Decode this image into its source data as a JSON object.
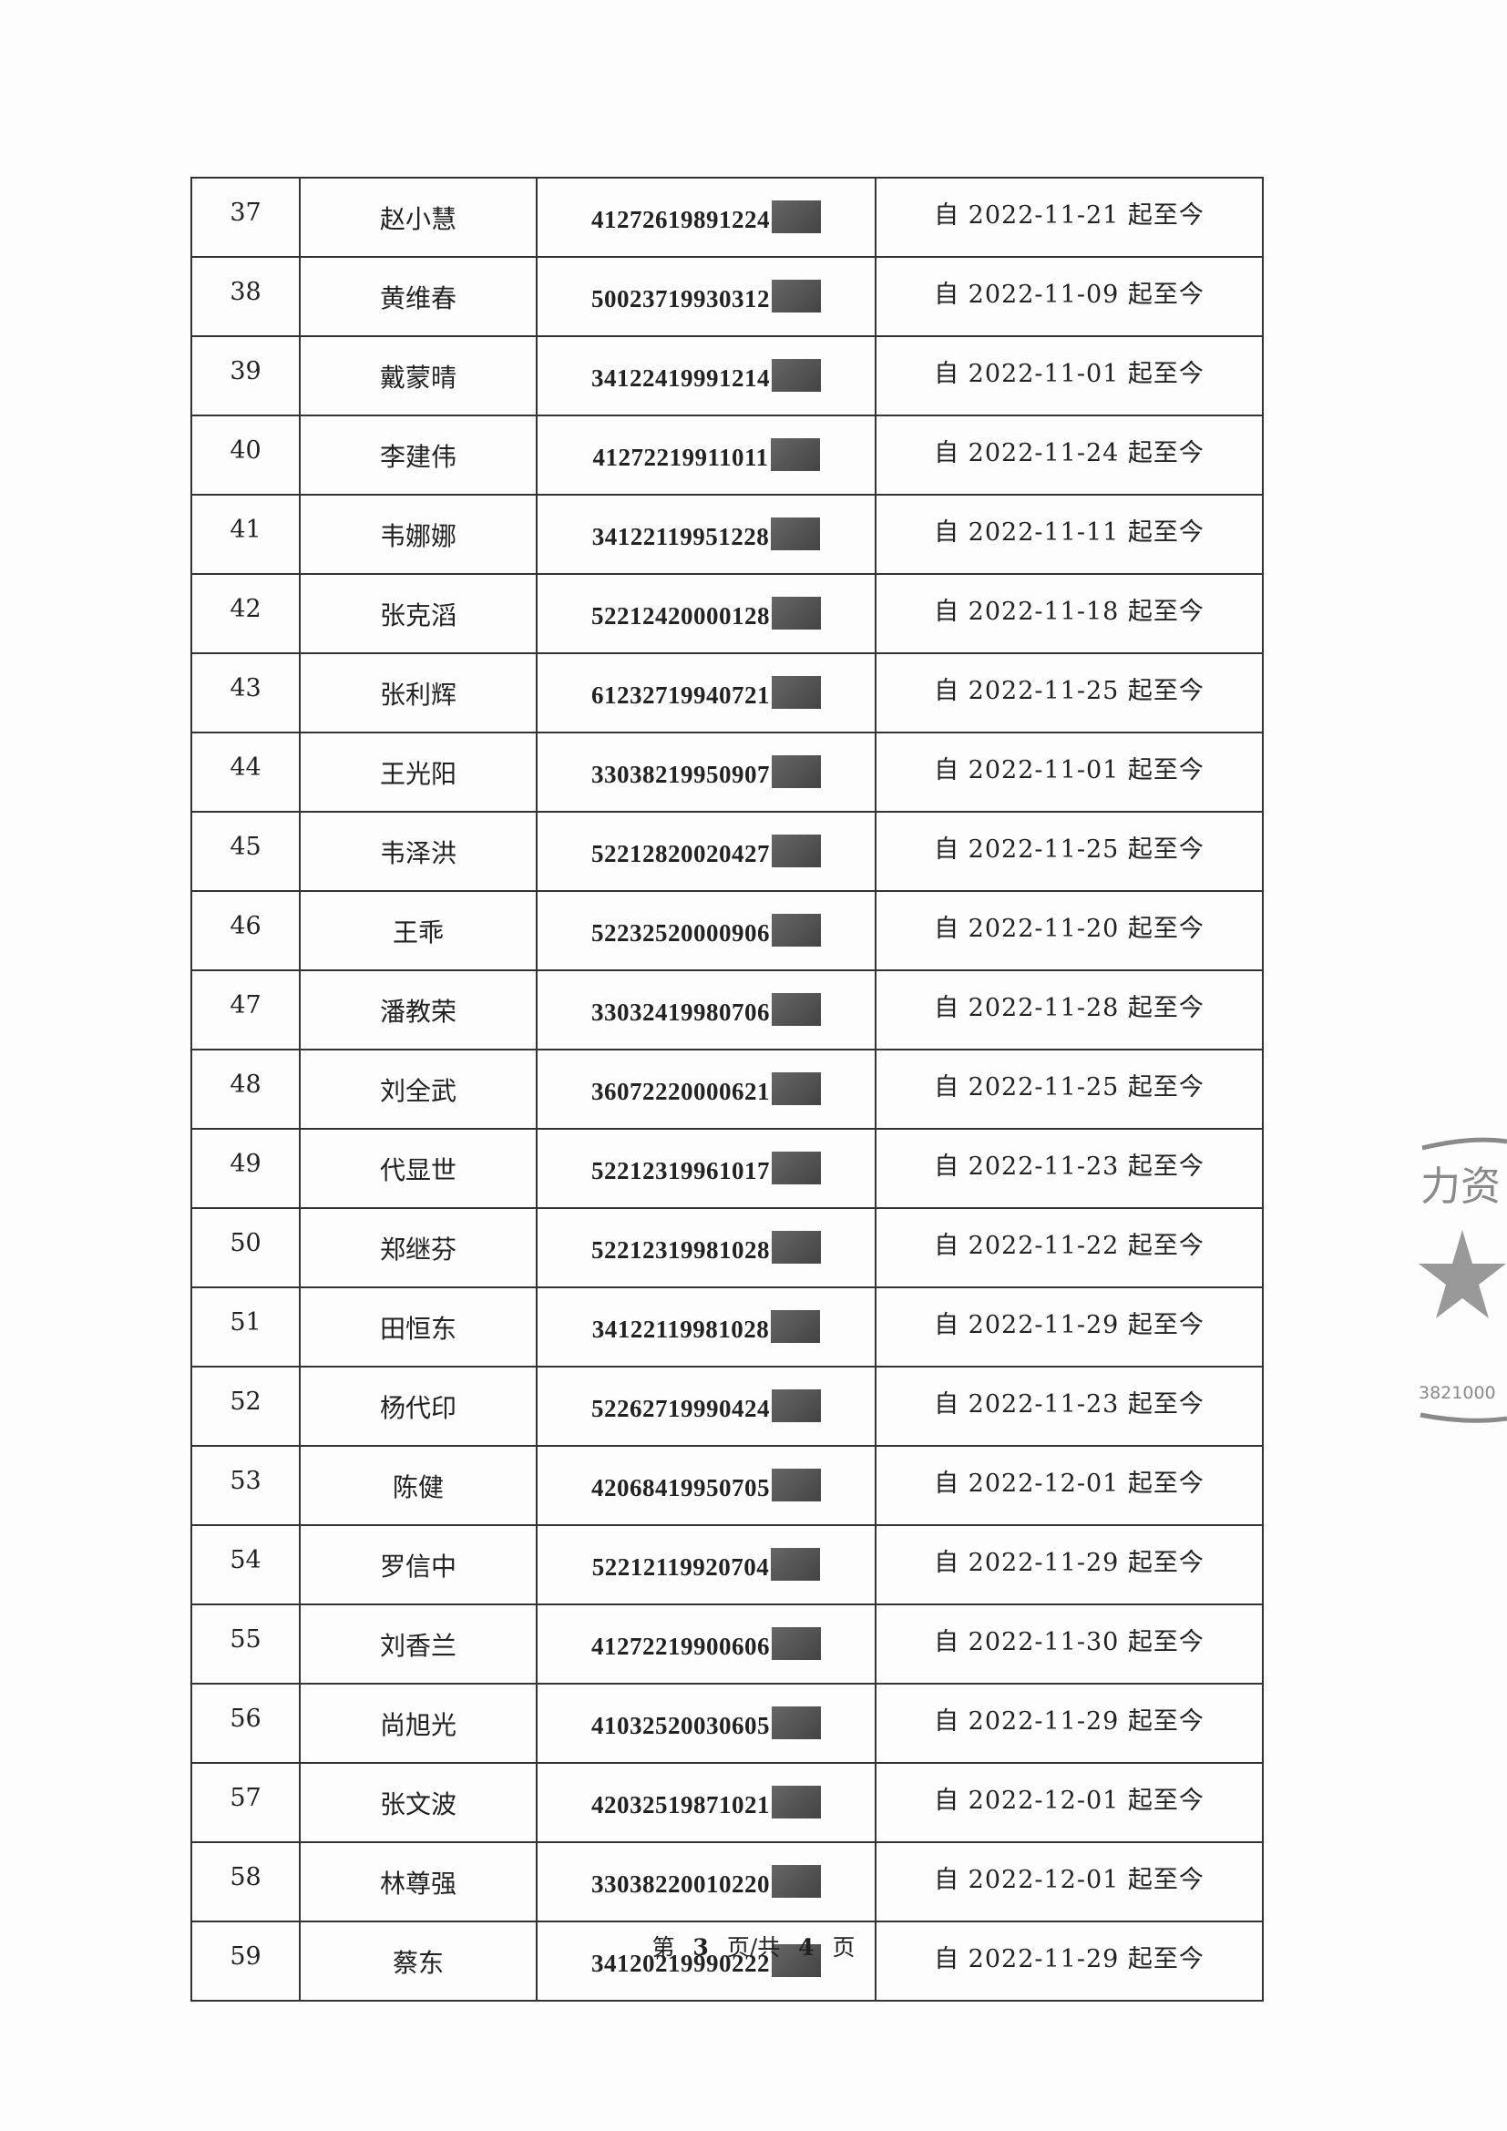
{
  "rows": [
    {
      "no": "37",
      "name": "赵小慧",
      "id": "41272619891224",
      "date": "自 2022-11-21 起至今"
    },
    {
      "no": "38",
      "name": "黄维春",
      "id": "50023719930312",
      "date": "自 2022-11-09 起至今"
    },
    {
      "no": "39",
      "name": "戴蒙晴",
      "id": "34122419991214",
      "date": "自 2022-11-01 起至今"
    },
    {
      "no": "40",
      "name": "李建伟",
      "id": "41272219911011",
      "date": "自 2022-11-24 起至今"
    },
    {
      "no": "41",
      "name": "韦娜娜",
      "id": "34122119951228",
      "date": "自 2022-11-11 起至今"
    },
    {
      "no": "42",
      "name": "张克滔",
      "id": "52212420000128",
      "date": "自 2022-11-18 起至今"
    },
    {
      "no": "43",
      "name": "张利辉",
      "id": "61232719940721",
      "date": "自 2022-11-25 起至今"
    },
    {
      "no": "44",
      "name": "王光阳",
      "id": "33038219950907",
      "date": "自 2022-11-01 起至今"
    },
    {
      "no": "45",
      "name": "韦泽洪",
      "id": "52212820020427",
      "date": "自 2022-11-25 起至今"
    },
    {
      "no": "46",
      "name": "王乖",
      "id": "52232520000906",
      "date": "自 2022-11-20 起至今"
    },
    {
      "no": "47",
      "name": "潘教荣",
      "id": "33032419980706",
      "date": "自 2022-11-28 起至今"
    },
    {
      "no": "48",
      "name": "刘全武",
      "id": "36072220000621",
      "date": "自 2022-11-25 起至今"
    },
    {
      "no": "49",
      "name": "代显世",
      "id": "52212319961017",
      "date": "自 2022-11-23 起至今"
    },
    {
      "no": "50",
      "name": "郑继芬",
      "id": "52212319981028",
      "date": "自 2022-11-22 起至今"
    },
    {
      "no": "51",
      "name": "田恒东",
      "id": "34122119981028",
      "date": "自 2022-11-29 起至今"
    },
    {
      "no": "52",
      "name": "杨代印",
      "id": "52262719990424",
      "date": "自 2022-11-23 起至今"
    },
    {
      "no": "53",
      "name": "陈健",
      "id": "42068419950705",
      "date": "自 2022-12-01 起至今"
    },
    {
      "no": "54",
      "name": "罗信中",
      "id": "52212119920704",
      "date": "自 2022-11-29 起至今"
    },
    {
      "no": "55",
      "name": "刘香兰",
      "id": "41272219900606",
      "date": "自 2022-11-30 起至今"
    },
    {
      "no": "56",
      "name": "尚旭光",
      "id": "41032520030605",
      "date": "自 2022-11-29 起至今"
    },
    {
      "no": "57",
      "name": "张文波",
      "id": "42032519871021",
      "date": "自 2022-12-01 起至今"
    },
    {
      "no": "58",
      "name": "林尊强",
      "id": "33038220010220",
      "date": "自 2022-12-01 起至今"
    },
    {
      "no": "59",
      "name": "蔡东",
      "id": "34120219990222",
      "date": "自 2022-11-29 起至今"
    }
  ],
  "footer": {
    "pre": "第",
    "page": "3",
    "mid": "页/共",
    "total": "4",
    "post": "页"
  },
  "stamp": {
    "text": "力资",
    "code": "3821000",
    "color": "#8a8a8a"
  }
}
